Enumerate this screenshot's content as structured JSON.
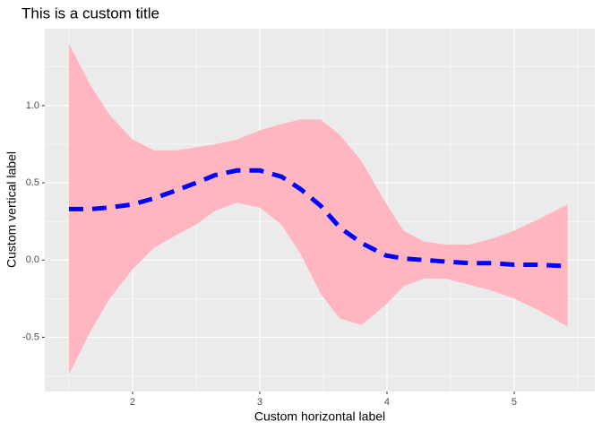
{
  "chart_data": {
    "type": "line",
    "title": "This is a custom title",
    "x_label": "Custom horizontal label",
    "y_label": "Custom vertical label",
    "x": [
      1.5,
      1.67,
      1.82,
      2.0,
      2.17,
      2.34,
      2.5,
      2.65,
      2.82,
      3.0,
      3.17,
      3.32,
      3.48,
      3.63,
      3.8,
      3.99,
      4.13,
      4.29,
      4.46,
      4.65,
      4.83,
      5.0,
      5.18,
      5.42
    ],
    "line": {
      "color": "#0000ff",
      "values": [
        0.33,
        0.33,
        0.34,
        0.36,
        0.4,
        0.45,
        0.5,
        0.55,
        0.58,
        0.58,
        0.54,
        0.46,
        0.35,
        0.21,
        0.11,
        0.03,
        0.01,
        0.0,
        -0.01,
        -0.02,
        -0.02,
        -0.03,
        -0.03,
        -0.04
      ]
    },
    "ribbon": {
      "color": "#ffb6c1",
      "upper": [
        1.4,
        1.13,
        0.94,
        0.78,
        0.71,
        0.71,
        0.73,
        0.75,
        0.78,
        0.84,
        0.88,
        0.91,
        0.91,
        0.81,
        0.64,
        0.37,
        0.19,
        0.12,
        0.1,
        0.1,
        0.14,
        0.19,
        0.26,
        0.36
      ],
      "lower": [
        -0.74,
        -0.46,
        -0.25,
        -0.06,
        0.08,
        0.16,
        0.23,
        0.32,
        0.37,
        0.34,
        0.23,
        0.04,
        -0.22,
        -0.38,
        -0.42,
        -0.29,
        -0.17,
        -0.12,
        -0.12,
        -0.16,
        -0.2,
        -0.25,
        -0.32,
        -0.43
      ]
    },
    "xlim": [
      1.31,
      5.634
    ],
    "ylim": [
      -0.851,
      1.498
    ],
    "xticks": [
      2,
      3,
      4,
      5
    ],
    "yticks": [
      {
        "value": -0.5,
        "label": "-0.5"
      },
      {
        "value": 0,
        "label": "0.0"
      },
      {
        "value": 0.5,
        "label": "0.5"
      },
      {
        "value": 1,
        "label": "1.0"
      }
    ],
    "x_minor_breaks": [
      1.5,
      2.5,
      3.5,
      4.5,
      5.5
    ],
    "y_minor_breaks": [
      -0.75,
      -0.25,
      0.25,
      0.75,
      1.25
    ],
    "grid": true
  }
}
